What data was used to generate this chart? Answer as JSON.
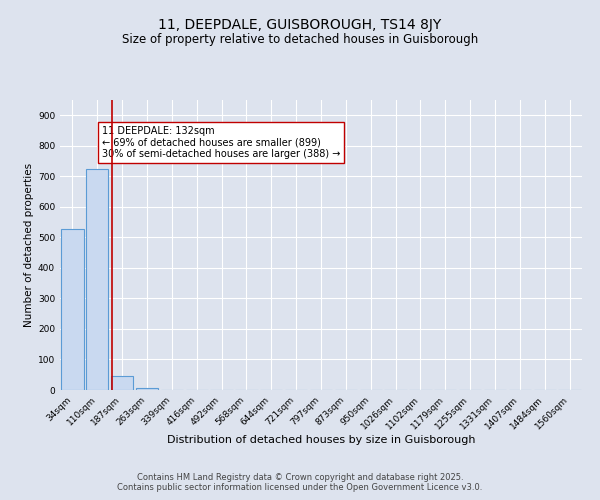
{
  "title": "11, DEEPDALE, GUISBOROUGH, TS14 8JY",
  "subtitle": "Size of property relative to detached houses in Guisborough",
  "xlabel": "Distribution of detached houses by size in Guisborough",
  "ylabel": "Number of detached properties",
  "bar_labels": [
    "34sqm",
    "110sqm",
    "187sqm",
    "263sqm",
    "339sqm",
    "416sqm",
    "492sqm",
    "568sqm",
    "644sqm",
    "721sqm",
    "797sqm",
    "873sqm",
    "950sqm",
    "1026sqm",
    "1102sqm",
    "1179sqm",
    "1255sqm",
    "1331sqm",
    "1407sqm",
    "1484sqm",
    "1560sqm"
  ],
  "bar_values": [
    528,
    725,
    47,
    8,
    0,
    0,
    0,
    0,
    0,
    0,
    0,
    0,
    0,
    0,
    0,
    0,
    0,
    0,
    0,
    0,
    0
  ],
  "bar_color": "#c9d9f0",
  "bar_edgecolor": "#5b9bd5",
  "bar_linewidth": 0.8,
  "vline_x": 1.58,
  "vline_color": "#c00000",
  "vline_linewidth": 1.2,
  "annotation_text": "11 DEEPDALE: 132sqm\n← 69% of detached houses are smaller (899)\n30% of semi-detached houses are larger (388) →",
  "annotation_box_color": "#ffffff",
  "annotation_box_edgecolor": "#c00000",
  "ylim": [
    0,
    950
  ],
  "yticks": [
    0,
    100,
    200,
    300,
    400,
    500,
    600,
    700,
    800,
    900
  ],
  "background_color": "#dde3ee",
  "plot_bg_color": "#dde3ee",
  "grid_color": "#ffffff",
  "footer_text": "Contains HM Land Registry data © Crown copyright and database right 2025.\nContains public sector information licensed under the Open Government Licence v3.0.",
  "title_fontsize": 10,
  "subtitle_fontsize": 8.5,
  "xlabel_fontsize": 8,
  "ylabel_fontsize": 7.5,
  "tick_fontsize": 6.5,
  "footer_fontsize": 6,
  "annotation_fontsize": 7
}
